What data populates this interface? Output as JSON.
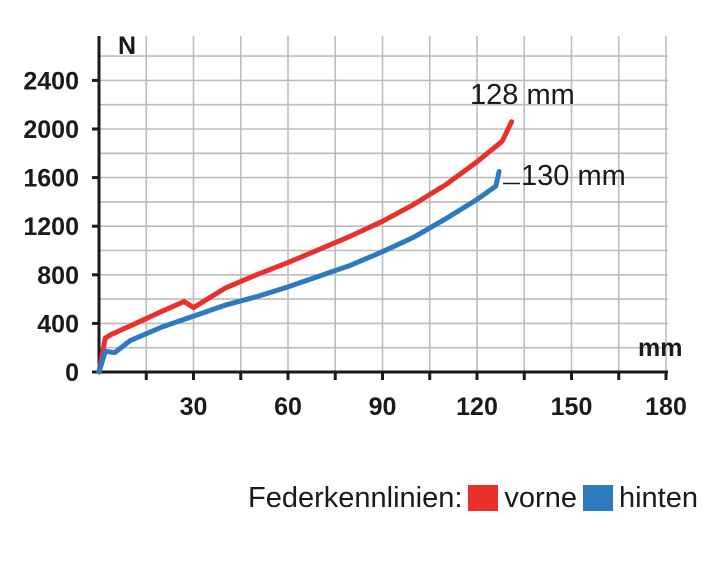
{
  "chart_data": {
    "type": "line",
    "xlabel": "mm",
    "ylabel": "N",
    "xlim": [
      0,
      180
    ],
    "ylim": [
      0,
      2600
    ],
    "x_ticks": [
      30,
      60,
      90,
      120,
      150,
      180
    ],
    "y_ticks": [
      0,
      400,
      800,
      1200,
      1600,
      2000,
      2400
    ],
    "grid": true,
    "legend_title": "Federkennlinien:",
    "legend_position": "bottom-right",
    "series": [
      {
        "name": "vorne",
        "color": "#e8312a",
        "annotation": "128 mm",
        "x": [
          0,
          2,
          4,
          10,
          20,
          27,
          30,
          40,
          50,
          60,
          70,
          80,
          90,
          100,
          110,
          120,
          128,
          131
        ],
        "y": [
          0,
          280,
          310,
          380,
          500,
          580,
          530,
          690,
          800,
          900,
          1010,
          1120,
          1240,
          1380,
          1540,
          1730,
          1900,
          2060
        ]
      },
      {
        "name": "hinten",
        "color": "#2e7abf",
        "annotation": "130 mm",
        "x": [
          0,
          2,
          5,
          10,
          20,
          30,
          40,
          50,
          60,
          70,
          80,
          90,
          100,
          110,
          120,
          126,
          127
        ],
        "y": [
          0,
          170,
          160,
          260,
          370,
          460,
          550,
          620,
          700,
          790,
          880,
          990,
          1110,
          1260,
          1420,
          1530,
          1650
        ]
      }
    ]
  }
}
